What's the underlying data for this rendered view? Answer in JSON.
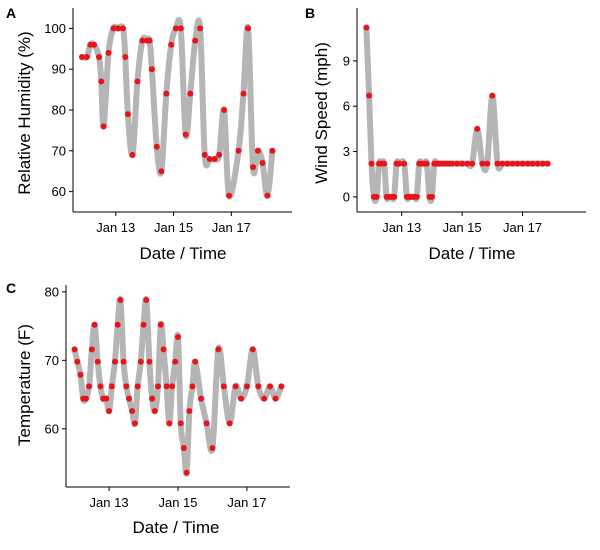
{
  "chart_data": [
    {
      "type": "line",
      "panel_label": "A",
      "xlabel": "Date / Time",
      "ylabel": "Relative Humidity (%)",
      "x_unit": "days since Jan 11 00:00",
      "xlim": [
        0.52,
        8.1
      ],
      "ylim": [
        55,
        105
      ],
      "x_ticks": [
        {
          "value": 2,
          "label": "Jan 13"
        },
        {
          "value": 4,
          "label": "Jan 15"
        },
        {
          "value": 6,
          "label": "Jan 17"
        }
      ],
      "y_ticks": [
        60,
        70,
        80,
        90,
        100
      ],
      "grid": false,
      "series": [
        {
          "color_line": "#b5b5b5",
          "color_points": "#e8141b",
          "x": [
            0.83,
            1.0,
            1.12,
            1.25,
            1.42,
            1.5,
            1.58,
            1.75,
            1.92,
            2.08,
            2.25,
            2.33,
            2.42,
            2.58,
            2.75,
            2.92,
            3.08,
            3.17,
            3.25,
            3.42,
            3.58,
            3.75,
            3.92,
            4.08,
            4.25,
            4.42,
            4.58,
            4.75,
            4.92,
            5.08,
            5.25,
            5.42,
            5.58,
            5.75,
            5.92,
            6.25,
            6.42,
            6.58,
            6.75,
            6.92,
            7.08,
            7.25,
            7.42
          ],
          "y": [
            93,
            93,
            96,
            96,
            93,
            87,
            76,
            94,
            100,
            100,
            100,
            93,
            79,
            69,
            87,
            97,
            97,
            97,
            90,
            71,
            65,
            84,
            96,
            100,
            100,
            74,
            84,
            97,
            100,
            69,
            68,
            68,
            69,
            80,
            59,
            70,
            84,
            100,
            66,
            70,
            67,
            59,
            70
          ]
        }
      ]
    },
    {
      "type": "line",
      "panel_label": "B",
      "xlabel": "Date / Time",
      "ylabel": "Wind Speed (mph)",
      "x_unit": "days since Jan 11 00:00",
      "xlim": [
        0.52,
        8.1
      ],
      "ylim": [
        -1,
        12.5
      ],
      "x_ticks": [
        {
          "value": 2,
          "label": "Jan 13"
        },
        {
          "value": 4,
          "label": "Jan 15"
        },
        {
          "value": 6,
          "label": "Jan 17"
        }
      ],
      "y_ticks": [
        0,
        3,
        6,
        9
      ],
      "grid": false,
      "series": [
        {
          "color_line": "#b5b5b5",
          "color_points": "#e8141b",
          "x": [
            0.83,
            0.92,
            1.0,
            1.08,
            1.17,
            1.25,
            1.33,
            1.42,
            1.5,
            1.58,
            1.67,
            1.75,
            1.83,
            1.92,
            2.08,
            2.17,
            2.25,
            2.33,
            2.42,
            2.5,
            2.58,
            2.67,
            2.75,
            2.83,
            2.92,
            3.0,
            3.08,
            3.17,
            3.25,
            3.33,
            3.42,
            3.5,
            3.58,
            3.67,
            3.83,
            4.0,
            4.17,
            4.33,
            4.5,
            4.67,
            4.83,
            5.0,
            5.17,
            5.33,
            5.5,
            5.67,
            5.83,
            6.0,
            6.17,
            6.33,
            6.5,
            6.67,
            6.83
          ],
          "y": [
            11.2,
            6.7,
            2.2,
            0,
            0,
            2.2,
            2.2,
            2.2,
            0,
            0,
            0,
            0,
            2.2,
            2.2,
            2.2,
            0,
            0,
            0,
            0,
            0,
            2.2,
            2.2,
            2.2,
            2.2,
            0,
            0,
            2.2,
            2.2,
            2.2,
            2.2,
            2.2,
            2.2,
            2.2,
            2.2,
            2.2,
            2.2,
            2.2,
            2.2,
            4.5,
            2.2,
            2.2,
            6.7,
            2.2,
            2.2,
            2.2,
            2.2,
            2.2,
            2.2,
            2.2,
            2.2,
            2.2,
            2.2,
            2.2
          ]
        }
      ]
    },
    {
      "type": "line",
      "panel_label": "C",
      "xlabel": "Date / Time",
      "ylabel": "Temperature (F)",
      "x_unit": "days since Jan 11 00:00",
      "xlim": [
        0.75,
        7.25
      ],
      "ylim": [
        51.5,
        81
      ],
      "x_ticks": [
        {
          "value": 2,
          "label": "Jan 13"
        },
        {
          "value": 4,
          "label": "Jan 15"
        },
        {
          "value": 6,
          "label": "Jan 17"
        }
      ],
      "y_ticks": [
        60,
        70,
        80
      ],
      "grid": false,
      "series": [
        {
          "color_line": "#b5b5b5",
          "color_points": "#e8141b",
          "x": [
            1.0,
            1.08,
            1.17,
            1.25,
            1.33,
            1.42,
            1.5,
            1.58,
            1.67,
            1.75,
            1.83,
            1.92,
            2.0,
            2.08,
            2.17,
            2.25,
            2.33,
            2.42,
            2.5,
            2.58,
            2.67,
            2.75,
            2.83,
            2.92,
            3.0,
            3.08,
            3.17,
            3.25,
            3.33,
            3.42,
            3.5,
            3.58,
            3.67,
            3.75,
            3.83,
            3.92,
            4.0,
            4.08,
            4.17,
            4.25,
            4.33,
            4.42,
            4.5,
            4.67,
            4.83,
            5.0,
            5.17,
            5.33,
            5.5,
            5.67,
            5.83,
            6.0,
            6.17,
            6.33,
            6.5,
            6.67,
            6.83,
            7.0
          ],
          "y": [
            71.6,
            69.8,
            67.9,
            64.4,
            64.4,
            66.2,
            71.6,
            75.2,
            69.8,
            66.2,
            64.4,
            64.4,
            62.6,
            66.2,
            69.8,
            75.2,
            78.8,
            69.8,
            66.2,
            64.4,
            62.6,
            60.8,
            66.2,
            69.8,
            75.2,
            78.8,
            69.8,
            64.4,
            62.6,
            66.2,
            75.2,
            71.6,
            66.2,
            60.8,
            66.2,
            69.8,
            73.4,
            60.8,
            57.2,
            53.6,
            62.6,
            66.2,
            69.8,
            64.4,
            60.8,
            57.2,
            71.6,
            66.2,
            60.8,
            66.2,
            64.4,
            66.2,
            71.6,
            66.2,
            64.4,
            66.2,
            64.4,
            66.2
          ]
        }
      ]
    }
  ]
}
